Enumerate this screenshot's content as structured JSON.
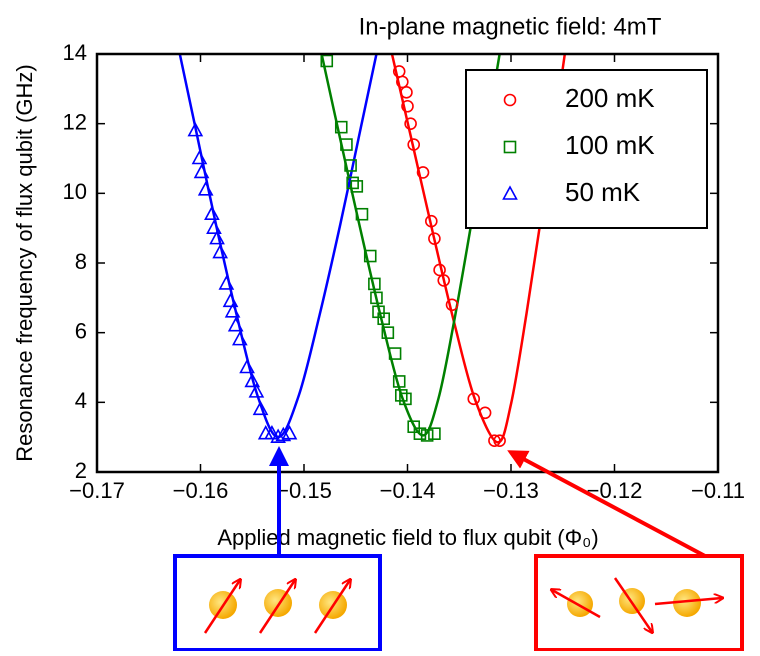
{
  "chart_data": {
    "type": "scatter",
    "title": "In-plane magnetic field: 4mT",
    "xlabel": "Applied magnetic field to flux qubit (Φ₀)",
    "ylabel": "Resonance frequency of flux qubit (GHz)",
    "xlim": [
      -0.17,
      -0.11
    ],
    "ylim": [
      2,
      14
    ],
    "xticks": [
      {
        "value": -0.17,
        "label": "−0.17"
      },
      {
        "value": -0.16,
        "label": "−0.16"
      },
      {
        "value": -0.15,
        "label": "−0.15"
      },
      {
        "value": -0.14,
        "label": "−0.14"
      },
      {
        "value": -0.13,
        "label": "−0.13"
      },
      {
        "value": -0.12,
        "label": "−0.12"
      },
      {
        "value": -0.11,
        "label": "−0.11"
      }
    ],
    "yticks": [
      2,
      4,
      6,
      8,
      10,
      12,
      14
    ],
    "legend": "upper right",
    "series": [
      {
        "name": "200 mK",
        "color": "#ff0000",
        "marker": "circle",
        "x": [
          -0.1408,
          -0.1405,
          -0.1401,
          -0.14,
          -0.1397,
          -0.1394,
          -0.1385,
          -0.1377,
          -0.1374,
          -0.1369,
          -0.1365,
          -0.1357,
          -0.1336,
          -0.1325,
          -0.1316,
          -0.1311
        ],
        "values": [
          13.5,
          13.2,
          12.9,
          12.5,
          12.0,
          11.4,
          10.6,
          9.2,
          8.7,
          7.8,
          7.5,
          6.8,
          4.1,
          3.7,
          2.9,
          2.9
        ]
      },
      {
        "name": "100 mK",
        "color": "#008000",
        "marker": "square",
        "x": [
          -0.1478,
          -0.1464,
          -0.1459,
          -0.1455,
          -0.1453,
          -0.1449,
          -0.1444,
          -0.1436,
          -0.1432,
          -0.143,
          -0.1428,
          -0.1423,
          -0.1419,
          -0.1412,
          -0.1408,
          -0.1406,
          -0.1402,
          -0.1394,
          -0.1388,
          -0.1381,
          -0.1374
        ],
        "values": [
          13.8,
          11.9,
          11.4,
          10.8,
          10.3,
          10.2,
          9.4,
          8.2,
          7.4,
          7.0,
          6.6,
          6.4,
          6.0,
          5.4,
          4.6,
          4.2,
          4.1,
          3.3,
          3.1,
          3.05,
          3.1
        ]
      },
      {
        "name": "50 mK",
        "color": "#0000ff",
        "marker": "triangle",
        "x": [
          -0.1605,
          -0.1601,
          -0.1599,
          -0.1595,
          -0.1589,
          -0.1587,
          -0.1584,
          -0.1581,
          -0.1575,
          -0.1571,
          -0.1569,
          -0.1566,
          -0.1562,
          -0.1555,
          -0.155,
          -0.1546,
          -0.1542,
          -0.1537,
          -0.1531,
          -0.1525,
          -0.152,
          -0.1514
        ],
        "values": [
          11.8,
          11.0,
          10.6,
          10.1,
          9.4,
          9.0,
          8.7,
          8.3,
          7.4,
          6.9,
          6.6,
          6.2,
          5.8,
          5.0,
          4.6,
          4.3,
          3.8,
          3.1,
          3.1,
          3.0,
          3.05,
          3.1
        ]
      }
    ],
    "fits": [
      {
        "color": "#ff0000",
        "x": [
          -0.1415,
          -0.1395,
          -0.1375,
          -0.1355,
          -0.1335,
          -0.1313,
          -0.13,
          -0.1285,
          -0.127,
          -0.1255,
          -0.1248
        ],
        "values": [
          14,
          11.4,
          8.8,
          6.3,
          4.1,
          2.85,
          3.95,
          6.55,
          9.5,
          12.55,
          14
        ]
      },
      {
        "color": "#008000",
        "x": [
          -0.1483,
          -0.1465,
          -0.1445,
          -0.1425,
          -0.1405,
          -0.1385,
          -0.137,
          -0.1355,
          -0.134,
          -0.1325,
          -0.1311
        ],
        "values": [
          14,
          11.56,
          8.9,
          6.36,
          4.13,
          3.05,
          4.12,
          6.32,
          8.85,
          11.5,
          14
        ]
      },
      {
        "color": "#0000ff",
        "x": [
          -0.162,
          -0.1605,
          -0.1585,
          -0.1565,
          -0.1545,
          -0.1525,
          -0.1505,
          -0.1485,
          -0.1465,
          -0.1445,
          -0.143
        ],
        "values": [
          14,
          11.9,
          9.1,
          6.5,
          4.2,
          3.0,
          4.2,
          6.5,
          9.1,
          11.9,
          14
        ]
      }
    ]
  }
}
